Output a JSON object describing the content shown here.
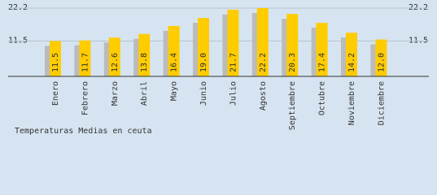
{
  "chart_data": {
    "type": "bar",
    "title": "Temperaturas Medias en ceuta",
    "categories": [
      "Enero",
      "Febrero",
      "Marzo",
      "Abril",
      "Mayo",
      "Junio",
      "Julio",
      "Agosto",
      "Septiembre",
      "Octubre",
      "Noviembre",
      "Diciembre"
    ],
    "values": [
      11.5,
      11.7,
      12.6,
      13.8,
      16.4,
      19.0,
      21.7,
      22.2,
      20.3,
      17.4,
      14.2,
      12.0
    ],
    "value_labels": [
      "11.5",
      "11.7",
      "12.6",
      "13.8",
      "16.4",
      "19.0",
      "21.7",
      "22.2",
      "20.3",
      "17.4",
      "14.2",
      "12.0"
    ],
    "color": "#ffcc00",
    "shadow_color": "#bbbbbb",
    "ylim": [
      0,
      22.2
    ],
    "yticks": [
      11.5,
      22.2
    ],
    "grid": true
  }
}
